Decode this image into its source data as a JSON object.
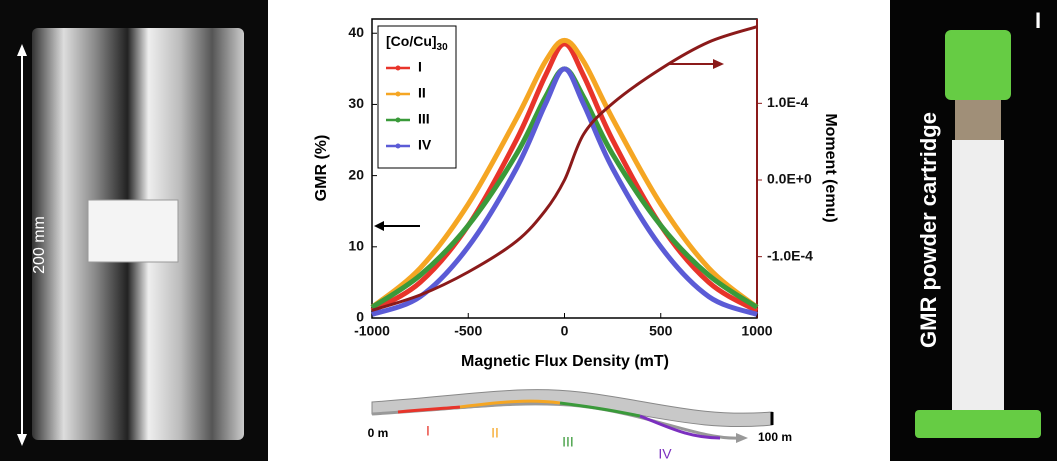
{
  "chart_data": {
    "type": "line",
    "x_label": "Magnetic Flux Density (mT)",
    "y_label": "GMR (%)",
    "y2_label": "Moment (emu)",
    "legend_title": "[Co/Cu]",
    "legend_title_sub": "30",
    "x": [
      -1000,
      -750,
      -500,
      -250,
      -100,
      0,
      100,
      250,
      500,
      750,
      1000
    ],
    "series": [
      {
        "name": "I",
        "color": "#e8342a",
        "values": [
          1,
          5,
          13,
          25,
          34,
          38.5,
          34,
          25,
          13,
          5,
          1
        ]
      },
      {
        "name": "II",
        "color": "#f5a623",
        "values": [
          1.5,
          7,
          16,
          28,
          36,
          39,
          36,
          28,
          16,
          7,
          1.5
        ]
      },
      {
        "name": "III",
        "color": "#3a9a3a",
        "values": [
          1.5,
          6,
          13,
          23,
          31,
          35,
          31,
          23,
          13,
          6,
          1.5
        ]
      },
      {
        "name": "IV",
        "color": "#5b5bd6",
        "values": [
          0.5,
          3,
          10,
          21,
          30,
          35,
          30,
          21,
          10,
          3,
          0.5
        ]
      }
    ],
    "moment": {
      "color": "#8b1a1a",
      "axis": "y2",
      "values": [
        -0.00017,
        -0.00015,
        -0.00012,
        -8e-05,
        -4e-05,
        0,
        6e-05,
        0.0001,
        0.000145,
        0.00018,
        0.0002
      ]
    },
    "xlim": [
      -1000,
      1000
    ],
    "xticks": [
      -1000,
      -500,
      0,
      500,
      1000
    ],
    "ylim": [
      0,
      42
    ],
    "yticks": [
      0,
      10,
      20,
      30,
      40
    ],
    "y2lim": [
      -0.00018,
      0.00021
    ],
    "y2ticks": [
      {
        "value": -0.0001,
        "label": "-1.0E-4"
      },
      {
        "value": 0,
        "label": "0.0E+0"
      },
      {
        "value": 0.0001,
        "label": "1.0E-4"
      }
    ]
  },
  "left_photo": {
    "label": "200 mm"
  },
  "right_photo": {
    "label": "GMR powder cartridge",
    "panel": "I"
  },
  "diagram": {
    "start": "0 m",
    "end": "100 m",
    "segments": [
      "I",
      "II",
      "III",
      "IV"
    ]
  }
}
